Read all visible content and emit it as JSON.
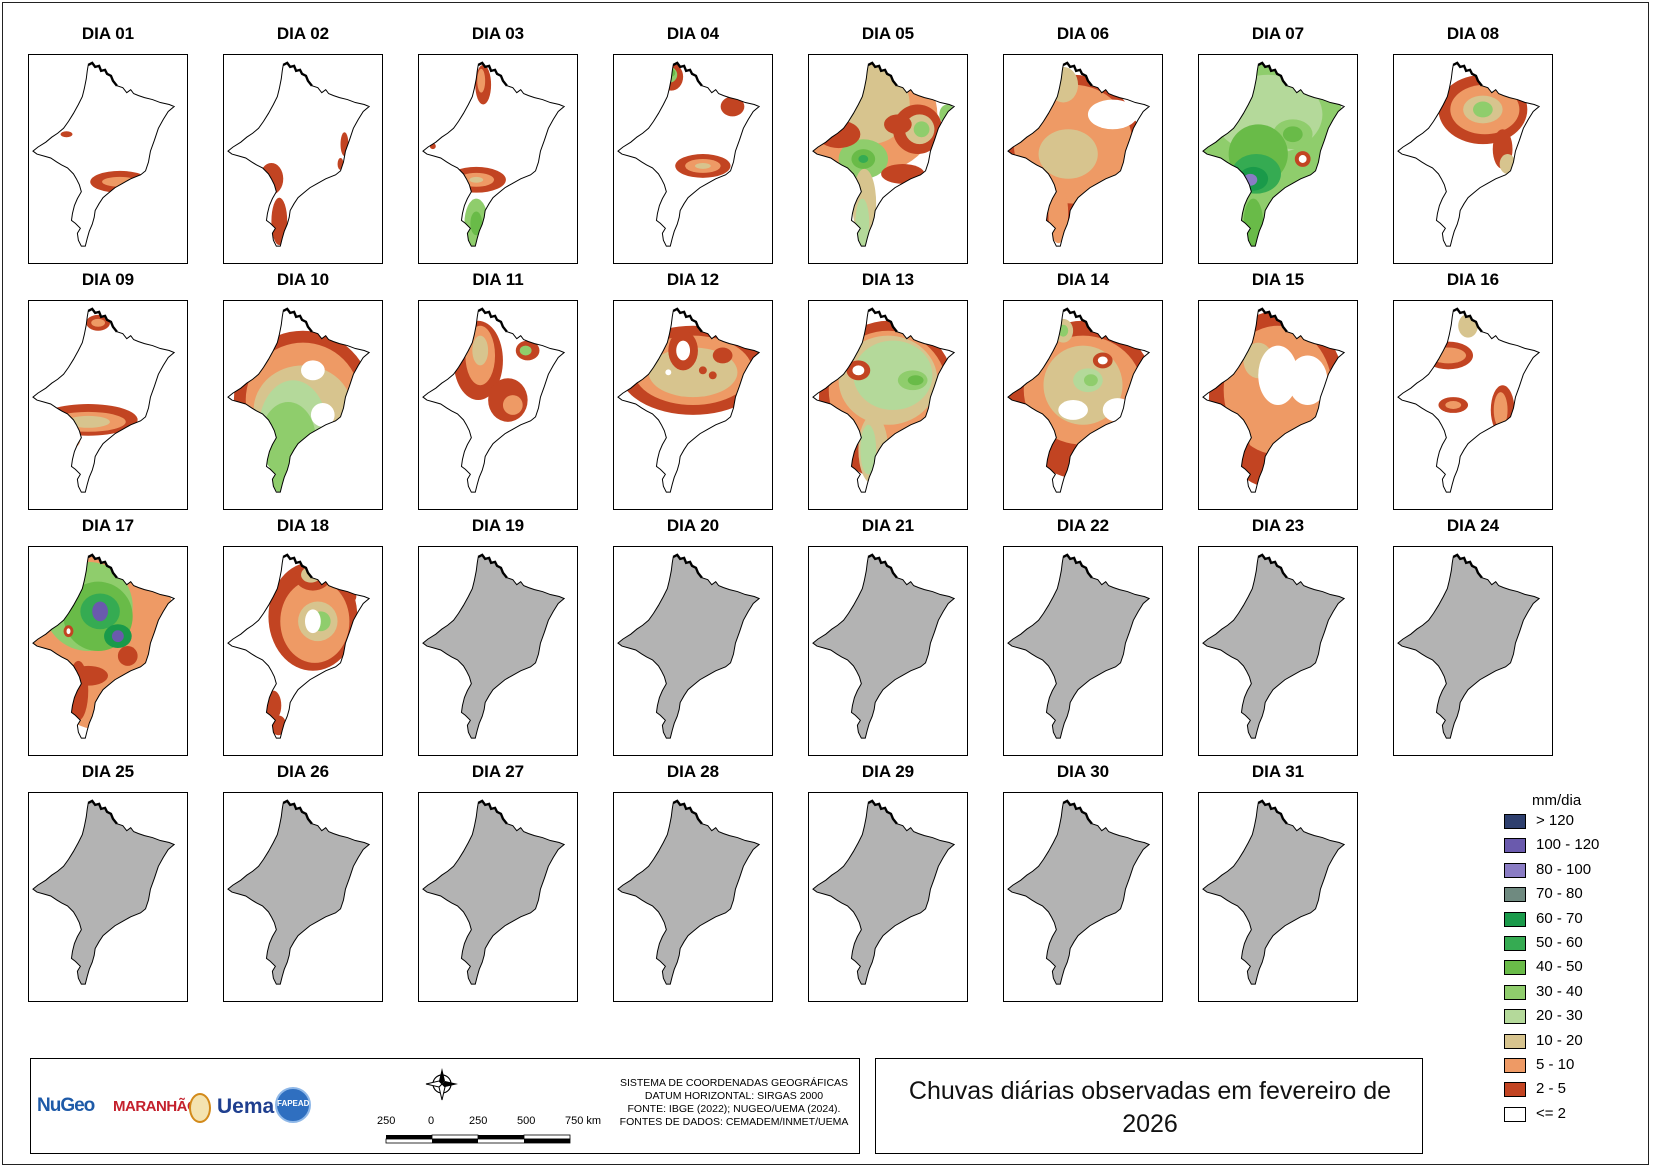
{
  "panels": [
    {
      "day": "DIA 01",
      "state": "data"
    },
    {
      "day": "DIA 02",
      "state": "data"
    },
    {
      "day": "DIA 03",
      "state": "data"
    },
    {
      "day": "DIA 04",
      "state": "data"
    },
    {
      "day": "DIA 05",
      "state": "data"
    },
    {
      "day": "DIA 06",
      "state": "data"
    },
    {
      "day": "DIA 07",
      "state": "data"
    },
    {
      "day": "DIA 08",
      "state": "data"
    },
    {
      "day": "DIA 09",
      "state": "data"
    },
    {
      "day": "DIA 10",
      "state": "data"
    },
    {
      "day": "DIA 11",
      "state": "data"
    },
    {
      "day": "DIA 12",
      "state": "data"
    },
    {
      "day": "DIA 13",
      "state": "data"
    },
    {
      "day": "DIA 14",
      "state": "data"
    },
    {
      "day": "DIA 15",
      "state": "data"
    },
    {
      "day": "DIA 16",
      "state": "data"
    },
    {
      "day": "DIA 17",
      "state": "data"
    },
    {
      "day": "DIA 18",
      "state": "data"
    },
    {
      "day": "DIA 19",
      "state": "nodata"
    },
    {
      "day": "DIA 20",
      "state": "nodata"
    },
    {
      "day": "DIA 21",
      "state": "nodata"
    },
    {
      "day": "DIA 22",
      "state": "nodata"
    },
    {
      "day": "DIA 23",
      "state": "nodata"
    },
    {
      "day": "DIA 24",
      "state": "nodata"
    },
    {
      "day": "DIA 25",
      "state": "nodata"
    },
    {
      "day": "DIA 26",
      "state": "nodata"
    },
    {
      "day": "DIA 27",
      "state": "nodata"
    },
    {
      "day": "DIA 28",
      "state": "nodata"
    },
    {
      "day": "DIA 29",
      "state": "nodata"
    },
    {
      "day": "DIA 30",
      "state": "nodata"
    },
    {
      "day": "DIA 31",
      "state": "nodata"
    }
  ],
  "legend": {
    "title": "mm/dia",
    "classes": [
      {
        "label": "> 120",
        "color": "#2e3f6e"
      },
      {
        "label": "100 - 120",
        "color": "#6a5aad"
      },
      {
        "label": "80 - 100",
        "color": "#8a7cc4"
      },
      {
        "label": "70 - 80",
        "color": "#6f8a80"
      },
      {
        "label": "60 - 70",
        "color": "#1a9a4a"
      },
      {
        "label": "50 - 60",
        "color": "#35ab52"
      },
      {
        "label": "40 - 50",
        "color": "#69bb48"
      },
      {
        "label": "30 - 40",
        "color": "#8fcd6c"
      },
      {
        "label": "20 - 30",
        "color": "#b4d99a"
      },
      {
        "label": "10 - 20",
        "color": "#d7c48e"
      },
      {
        "label": "5 - 10",
        "color": "#ee9a65"
      },
      {
        "label": "2 - 5",
        "color": "#c24422"
      },
      {
        "label": "<= 2",
        "color": "#ffffff"
      }
    ],
    "nodata_color": "#b3b3b3"
  },
  "title": "Chuvas diárias observadas em fevereiro de 2026",
  "credits": {
    "lines": [
      "SISTEMA DE COORDENADAS GEOGRÁFICAS",
      "DATUM HORIZONTAL: SIRGAS 2000",
      "FONTE: IBGE (2022); NUGEO/UEMA (2024).",
      "FONTES DE DADOS: CEMADEM/INMET/UEMA"
    ]
  },
  "scale_bar": {
    "labels": [
      "250",
      "0",
      "250",
      "500",
      "750 km"
    ]
  },
  "logos": [
    "NuGeo",
    "MARANHÃO",
    "Uema",
    "FAPEAD"
  ]
}
